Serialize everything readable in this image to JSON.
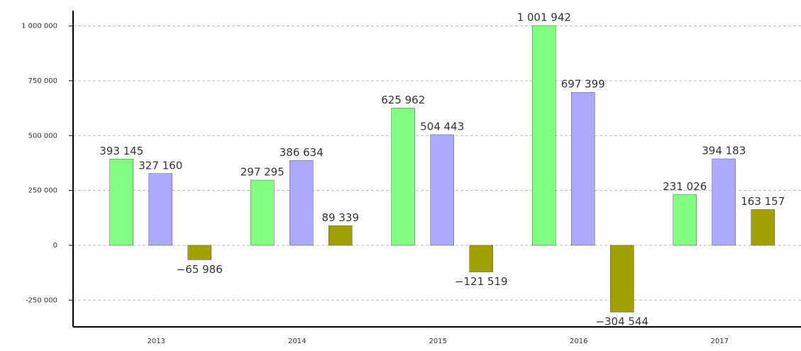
{
  "chart_data": {
    "type": "bar",
    "categories": [
      "2013",
      "2014",
      "2015",
      "2016",
      "2017"
    ],
    "series": [
      {
        "color": "#80ff80",
        "values": [
          393145,
          297295,
          625962,
          1001942,
          231026
        ],
        "value_labels": [
          "393 145",
          "297 295",
          "625 962",
          "1 001 942",
          "231 026"
        ]
      },
      {
        "color": "#aaaaff",
        "values": [
          327160,
          386634,
          504443,
          697399,
          394183
        ],
        "value_labels": [
          "327 160",
          "386 634",
          "504 443",
          "697 399",
          "394 183"
        ]
      },
      {
        "color": "#a0a000",
        "values": [
          -65986,
          89339,
          -121519,
          -304544,
          163157
        ],
        "value_labels": [
          "−65 986",
          "89 339",
          "−121 519",
          "−304 544",
          "163 157"
        ]
      }
    ],
    "ylim": [
      -372000,
      1070000
    ],
    "yticks": [
      {
        "value": -250000,
        "label": "-250 000"
      },
      0,
      {
        "value": 250000,
        "label": "250 000"
      },
      {
        "value": 500000,
        "label": "500 000"
      },
      {
        "value": 750000,
        "label": "750 000"
      },
      {
        "value": 1000000,
        "label": "1 000 000"
      }
    ],
    "grid": true
  }
}
